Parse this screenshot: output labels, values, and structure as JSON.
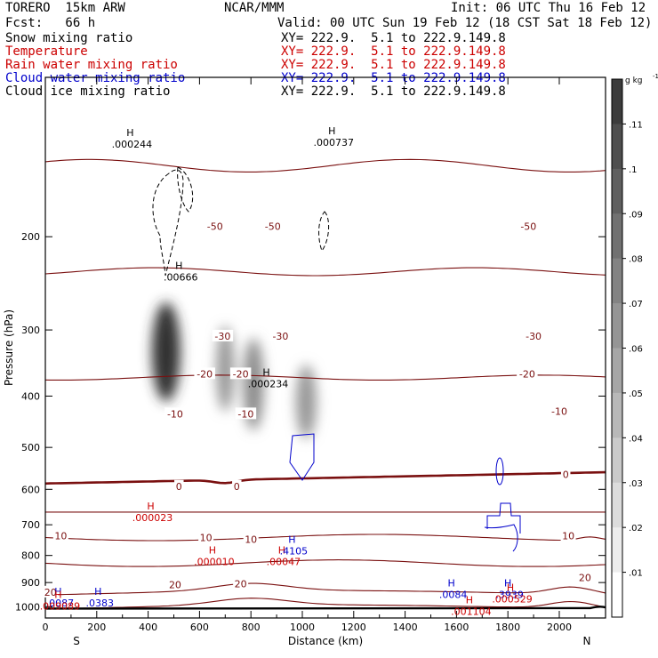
{
  "header": {
    "model": "TORERO  15km ARW",
    "org": "NCAR/MMM",
    "init": "Init: 06 UTC Thu 16 Feb 12",
    "fcst": "Fcst:   66 h",
    "valid": "Valid: 00 UTC Sun 19 Feb 12 (18 CST Sat 18 Feb 12)"
  },
  "fields": [
    {
      "name": "Snow mixing ratio",
      "xy": "XY= 222.9.  5.1 to 222.9.149.8",
      "color": "#000000"
    },
    {
      "name": "Temperature",
      "xy": "XY= 222.9.  5.1 to 222.9.149.8",
      "color": "#cc0000"
    },
    {
      "name": "Rain water mixing ratio",
      "xy": "XY= 222.9.  5.1 to 222.9.149.8",
      "color": "#cc0000"
    },
    {
      "name": "Cloud water mixing ratio",
      "xy": "XY= 222.9.  5.1 to 222.9.149.8",
      "color": "#0000cc"
    },
    {
      "name": "Cloud ice mixing ratio",
      "xy": "XY= 222.9.  5.1 to 222.9.149.8",
      "color": "#000000"
    }
  ],
  "chart_data": {
    "type": "cross-section",
    "xlabel": "Distance (km)",
    "ylabel": "Pressure (hPa)",
    "xlim": [
      0,
      2180
    ],
    "ylim": [
      1050,
      100
    ],
    "x_ticks": [
      0,
      200,
      400,
      600,
      800,
      1000,
      1200,
      1400,
      1600,
      1800,
      2000
    ],
    "y_ticks": [
      200,
      300,
      400,
      500,
      600,
      700,
      800,
      900,
      1000
    ],
    "left_end": "S",
    "right_end": "N",
    "isotherm_levels": [
      -65,
      -60,
      -55,
      -50,
      -45,
      -40,
      -35,
      -30,
      -25,
      -20,
      -15,
      -10,
      -5,
      0,
      5,
      10,
      15,
      20,
      25
    ],
    "isotherm_labels": [
      {
        "text": "-50",
        "x": 660,
        "p": 191
      },
      {
        "text": "-50",
        "x": 885,
        "p": 191
      },
      {
        "text": "-50",
        "x": 1880,
        "p": 191
      },
      {
        "text": "-30",
        "x": 690,
        "p": 308
      },
      {
        "text": "-30",
        "x": 915,
        "p": 308
      },
      {
        "text": "-30",
        "x": 1900,
        "p": 308
      },
      {
        "text": "-20",
        "x": 620,
        "p": 363
      },
      {
        "text": "-20",
        "x": 760,
        "p": 363
      },
      {
        "text": "-20",
        "x": 1875,
        "p": 363
      },
      {
        "text": "-10",
        "x": 505,
        "p": 432
      },
      {
        "text": "-10",
        "x": 780,
        "p": 432
      },
      {
        "text": "-10",
        "x": 2000,
        "p": 427
      },
      {
        "text": "0",
        "x": 520,
        "p": 592
      },
      {
        "text": "0",
        "x": 745,
        "p": 592
      },
      {
        "text": "0",
        "x": 2025,
        "p": 562
      },
      {
        "text": "10",
        "x": 60,
        "p": 734
      },
      {
        "text": "10",
        "x": 625,
        "p": 740
      },
      {
        "text": "10",
        "x": 800,
        "p": 745
      },
      {
        "text": "10",
        "x": 2035,
        "p": 734
      },
      {
        "text": "20",
        "x": 20,
        "p": 938
      },
      {
        "text": "20",
        "x": 505,
        "p": 909
      },
      {
        "text": "20",
        "x": 760,
        "p": 905
      },
      {
        "text": "20",
        "x": 2100,
        "p": 880
      }
    ],
    "maxima": [
      {
        "label": "H",
        "value": ".000244",
        "x": 330,
        "p": 130,
        "color": "#000000"
      },
      {
        "label": "H",
        "value": ".00666",
        "x": 520,
        "p": 232,
        "color": "#000000"
      },
      {
        "label": "H",
        "value": ".000234",
        "x": 860,
        "p": 369,
        "color": "#000000"
      },
      {
        "label": "H",
        "value": ".000737",
        "x": 1115,
        "p": 129,
        "color": "#000000"
      },
      {
        "label": "H",
        "value": ".000023",
        "x": 410,
        "p": 660,
        "color": "#cc0000"
      },
      {
        "label": "H",
        "value": ".000010",
        "x": 650,
        "p": 800,
        "color": "#cc0000"
      },
      {
        "label": "H",
        "value": ".00047",
        "x": 920,
        "p": 800,
        "color": "#cc0000"
      },
      {
        "label": "H",
        "value": ".4105",
        "x": 960,
        "p": 763,
        "color": "#0000cc"
      },
      {
        "label": "H",
        "value": ".0087",
        "x": 50,
        "p": 957,
        "color": "#0000cc"
      },
      {
        "label": "H",
        "value": ".0383",
        "x": 205,
        "p": 957,
        "color": "#0000cc"
      },
      {
        "label": "H",
        "value": ".009089",
        "x": 50,
        "p": 970,
        "color": "#cc0000"
      },
      {
        "label": "H",
        "value": ".0084",
        "x": 1580,
        "p": 922,
        "color": "#0000cc"
      },
      {
        "label": "H",
        "value": ".3939",
        "x": 1800,
        "p": 922,
        "color": "#0000cc"
      },
      {
        "label": "H",
        "value": ".000529",
        "x": 1810,
        "p": 940,
        "color": "#cc0000"
      },
      {
        "label": "H",
        "value": ".001104",
        "x": 1650,
        "p": 993,
        "color": "#cc0000"
      }
    ],
    "colorbar": {
      "unit": "g kg",
      "unit_exp": "-1",
      "ticks": [
        ".11",
        ".1",
        ".09",
        ".08",
        ".07",
        ".06",
        ".05",
        ".04",
        ".03",
        ".02",
        ".01"
      ]
    },
    "snow_blobs": [
      {
        "x": 470,
        "p": 330,
        "sx": 55,
        "sp": 70,
        "peak": 0.9
      },
      {
        "x": 700,
        "p": 355,
        "sx": 35,
        "sp": 65,
        "peak": 0.45
      },
      {
        "x": 810,
        "p": 380,
        "sx": 40,
        "sp": 75,
        "peak": 0.5
      },
      {
        "x": 1015,
        "p": 410,
        "sx": 40,
        "sp": 65,
        "peak": 0.45
      }
    ]
  }
}
